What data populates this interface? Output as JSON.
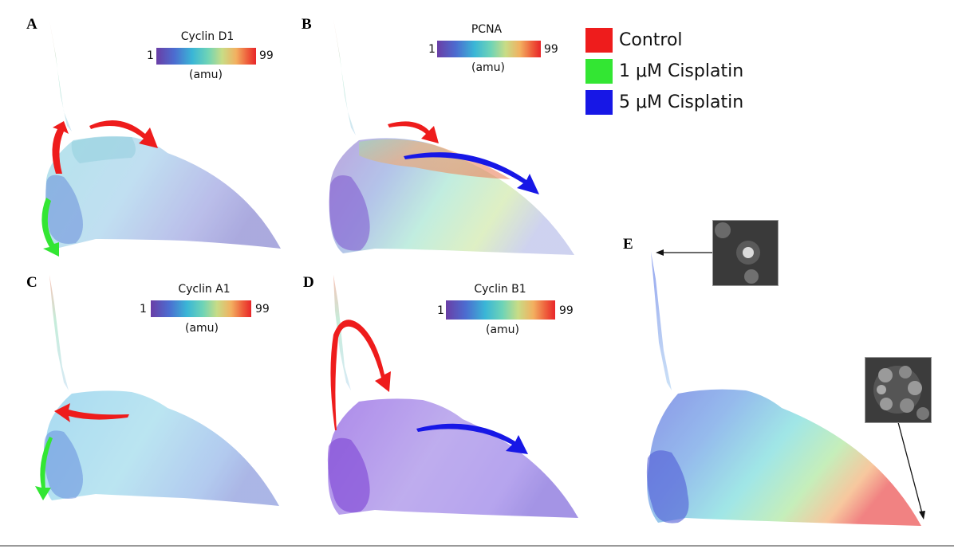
{
  "panels": {
    "A": {
      "letter": "A",
      "colorbar": {
        "title": "Cyclin D1",
        "min": "1",
        "max": "99",
        "unit": "(amu)"
      }
    },
    "B": {
      "letter": "B",
      "colorbar": {
        "title": "PCNA",
        "min": "1",
        "max": "99",
        "unit": "(amu)"
      }
    },
    "C": {
      "letter": "C",
      "colorbar": {
        "title": "Cyclin A1",
        "min": "1",
        "max": "99",
        "unit": "(amu)"
      }
    },
    "D": {
      "letter": "D",
      "colorbar": {
        "title": "Cyclin B1",
        "min": "1",
        "max": "99",
        "unit": "(amu)"
      }
    },
    "E": {
      "letter": "E"
    }
  },
  "legend": {
    "items": [
      {
        "label": "Control",
        "color": "#ee1c1c"
      },
      {
        "label": "1 μM Cisplatin",
        "color": "#33e633"
      },
      {
        "label": "5 μM Cisplatin",
        "color": "#1717e6"
      }
    ]
  },
  "icons": {
    "arrow": "curved-arrow-icon",
    "micrograph": "cell-micrograph-icon"
  }
}
